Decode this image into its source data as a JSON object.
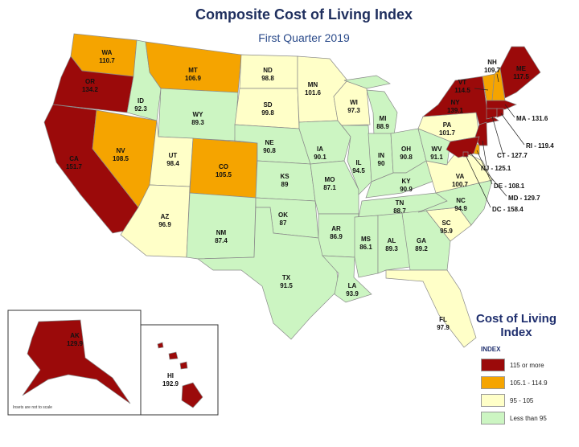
{
  "title": "Composite Cost of Living Index",
  "subtitle": "First Quarter 2019",
  "note": "Insets are not to scale",
  "legend": {
    "title": "Cost of Living Index",
    "header": "INDEX",
    "bins": [
      {
        "label": "115 or more",
        "min": 115,
        "color": "#9b0a0a"
      },
      {
        "label": "105.1 - 114.9",
        "min": 105.1,
        "color": "#f5a400"
      },
      {
        "label": "95 - 105",
        "min": 95,
        "color": "#ffffc8"
      },
      {
        "label": "Less than 95",
        "color": "#ccf5c2"
      }
    ]
  },
  "states": [
    {
      "abbr": "WA",
      "value": 110.7
    },
    {
      "abbr": "OR",
      "value": 134.2
    },
    {
      "abbr": "CA",
      "value": 151.7
    },
    {
      "abbr": "ID",
      "value": 92.3
    },
    {
      "abbr": "NV",
      "value": 108.5
    },
    {
      "abbr": "MT",
      "value": 106.9
    },
    {
      "abbr": "WY",
      "value": 89.3
    },
    {
      "abbr": "UT",
      "value": 98.4
    },
    {
      "abbr": "AZ",
      "value": 96.9
    },
    {
      "abbr": "CO",
      "value": 105.5
    },
    {
      "abbr": "NM",
      "value": 87.4
    },
    {
      "abbr": "ND",
      "value": 98.8
    },
    {
      "abbr": "SD",
      "value": 99.8
    },
    {
      "abbr": "NE",
      "value": 90.8
    },
    {
      "abbr": "KS",
      "value": 89
    },
    {
      "abbr": "OK",
      "value": 87
    },
    {
      "abbr": "TX",
      "value": 91.5
    },
    {
      "abbr": "MN",
      "value": 101.6
    },
    {
      "abbr": "IA",
      "value": 90.1
    },
    {
      "abbr": "MO",
      "value": 87.1
    },
    {
      "abbr": "AR",
      "value": 86.9
    },
    {
      "abbr": "LA",
      "value": 93.9
    },
    {
      "abbr": "WI",
      "value": 97.3
    },
    {
      "abbr": "IL",
      "value": 94.5
    },
    {
      "abbr": "MI",
      "value": 88.9
    },
    {
      "abbr": "IN",
      "value": 90
    },
    {
      "abbr": "OH",
      "value": 90.8
    },
    {
      "abbr": "KY",
      "value": 90.9
    },
    {
      "abbr": "TN",
      "value": 88.7
    },
    {
      "abbr": "MS",
      "value": 86.1
    },
    {
      "abbr": "AL",
      "value": 89.3
    },
    {
      "abbr": "GA",
      "value": 89.2
    },
    {
      "abbr": "FL",
      "value": 97.9
    },
    {
      "abbr": "SC",
      "value": 95.9
    },
    {
      "abbr": "NC",
      "value": 94.9
    },
    {
      "abbr": "VA",
      "value": 100.7
    },
    {
      "abbr": "WV",
      "value": 91.1
    },
    {
      "abbr": "PA",
      "value": 101.7
    },
    {
      "abbr": "NY",
      "value": 139.1
    },
    {
      "abbr": "VT",
      "value": 114.5
    },
    {
      "abbr": "NH",
      "value": 109.7
    },
    {
      "abbr": "ME",
      "value": 117.5
    },
    {
      "label": "MA - 131.6",
      "value": 131.6
    },
    {
      "label": "CT - 127.7",
      "value": 127.7
    },
    {
      "label": "RI - 119.4",
      "value": 119.4
    },
    {
      "label": "NJ - 125.1",
      "value": 125.1
    },
    {
      "label": "DE - 108.1",
      "value": 108.1
    },
    {
      "label": "MD - 129.7",
      "value": 129.7
    },
    {
      "label": "DC - 158.4",
      "value": 158.4
    },
    {
      "abbr": "AK",
      "value": 129.9
    },
    {
      "abbr": "HI",
      "value": 192.9
    }
  ]
}
